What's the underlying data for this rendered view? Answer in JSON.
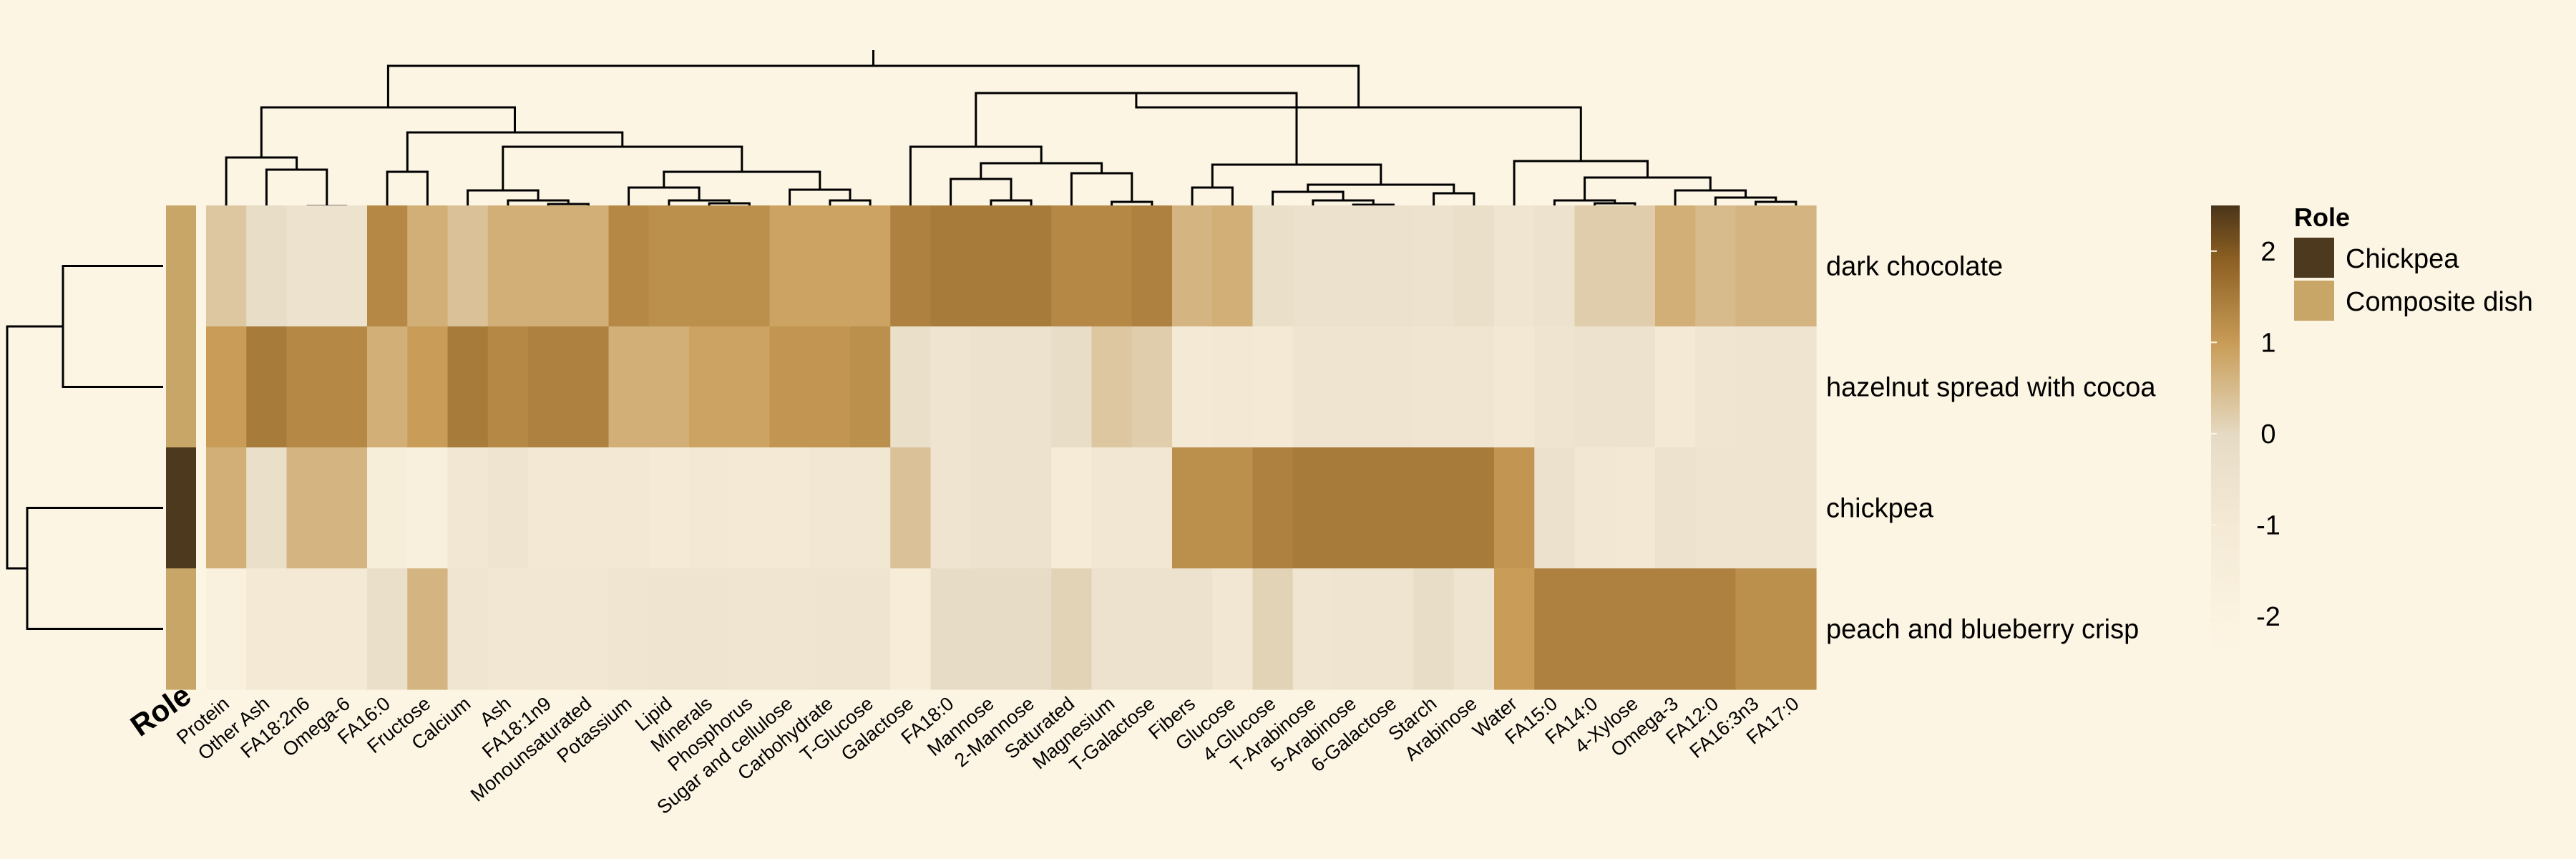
{
  "chart_data": {
    "type": "heatmap",
    "rows": [
      "dark chocolate",
      "hazelnut spread with cocoa",
      "chickpea",
      "peach and blueberry crisp"
    ],
    "row_roles": [
      "Composite dish",
      "Composite dish",
      "Chickpea",
      "Composite dish"
    ],
    "columns": [
      "Protein",
      "Other Ash",
      "FA18:2n6",
      "Omega-6",
      "FA16:0",
      "Fructose",
      "Calcium",
      "Ash",
      "FA18:1n9",
      "Monounsaturated",
      "Potassium",
      "Lipid",
      "Minerals",
      "Phosphorus",
      "Sugar and cellulose",
      "Carbohydrate",
      "T-Glucose",
      "Galactose",
      "FA18:0",
      "Mannose",
      "2-Mannose",
      "Saturated",
      "Magnesium",
      "T-Galactose",
      "Fibers",
      "Glucose",
      "4-Glucose",
      "T-Arabinose",
      "5-Arabinose",
      "6-Galactose",
      "Starch",
      "Arabinose",
      "Water",
      "FA15:0",
      "FA14:0",
      "4-Xylose",
      "Omega-3",
      "FA12:0",
      "FA16:3n3",
      "FA17:0"
    ],
    "values": [
      [
        0.3,
        -0.2,
        -0.5,
        -0.5,
        1.3,
        0.7,
        0.4,
        0.7,
        0.7,
        0.7,
        1.3,
        1.2,
        1.2,
        1.2,
        0.9,
        0.9,
        0.9,
        1.4,
        1.5,
        1.5,
        1.5,
        1.3,
        1.3,
        1.4,
        0.6,
        0.7,
        -0.3,
        -0.4,
        -0.4,
        -0.4,
        -0.5,
        -0.3,
        -0.7,
        -0.5,
        0.2,
        0.2,
        0.7,
        0.5,
        0.6,
        0.6
      ],
      [
        1.0,
        1.5,
        1.3,
        1.3,
        0.7,
        1.0,
        1.5,
        1.3,
        1.4,
        1.4,
        0.7,
        0.7,
        0.9,
        0.9,
        1.1,
        1.1,
        1.2,
        -0.3,
        -0.6,
        -0.5,
        -0.5,
        -0.2,
        0.3,
        0.2,
        -1.0,
        -0.9,
        -1.0,
        -0.6,
        -0.6,
        -0.6,
        -0.7,
        -0.7,
        -0.9,
        -0.6,
        -0.5,
        -0.5,
        -1.0,
        -0.7,
        -0.6,
        -0.6
      ],
      [
        0.7,
        -0.3,
        0.6,
        0.6,
        -1.5,
        -1.7,
        -0.8,
        -0.6,
        -0.9,
        -0.9,
        -0.9,
        -1.1,
        -0.9,
        -1.0,
        -1.0,
        -0.8,
        -0.8,
        0.4,
        -0.6,
        -0.5,
        -0.5,
        -1.2,
        -0.8,
        -0.8,
        1.2,
        1.2,
        1.4,
        1.5,
        1.5,
        1.5,
        1.5,
        1.5,
        1.1,
        -0.4,
        -0.8,
        -0.9,
        -0.5,
        -0.6,
        -0.6,
        -0.6
      ],
      [
        -1.8,
        -1.0,
        -1.0,
        -1.0,
        -0.3,
        0.6,
        -0.7,
        -0.8,
        -0.8,
        -0.8,
        -0.7,
        -0.6,
        -0.6,
        -0.7,
        -0.7,
        -0.6,
        -0.6,
        -1.3,
        -0.1,
        -0.1,
        -0.1,
        0.1,
        -0.5,
        -0.5,
        -0.5,
        -0.8,
        0.1,
        -0.7,
        -0.6,
        -0.6,
        -0.2,
        -0.6,
        1.0,
        1.4,
        1.4,
        1.4,
        1.4,
        1.4,
        1.2,
        1.2
      ]
    ],
    "colorbar": {
      "min": -2.4,
      "max": 2.5,
      "ticks": [
        2,
        1,
        0,
        -1,
        -2
      ],
      "tick_labels": [
        "2",
        "1",
        "0",
        "-1",
        "-2"
      ]
    },
    "annotation_label": "Role",
    "legend": {
      "title": "Role",
      "items": [
        {
          "label": "Chickpea",
          "color": "#4d3a1e"
        },
        {
          "label": "Composite dish",
          "color": "#c8a667"
        }
      ]
    },
    "colors": {
      "background": "#fdf5e3",
      "scale": [
        "#fdf5e3",
        "#e6dcc6",
        "#d4aa6a",
        "#9b6a28",
        "#4a3519"
      ]
    }
  }
}
